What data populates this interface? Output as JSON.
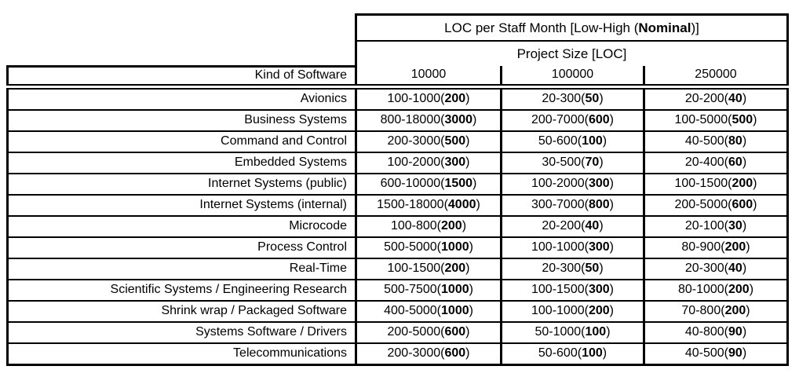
{
  "page": {
    "background_color": "#ffffff",
    "border_color": "#000000",
    "text_color": "#000000"
  },
  "header": {
    "title_prefix": "LOC per Staff Month [Low-High (",
    "title_bold": "Nominal",
    "title_suffix": ")]",
    "subtitle": "Project Size [LOC]",
    "row_header": "Kind of Software",
    "size_columns": [
      "10000",
      "100000",
      "250000"
    ]
  },
  "table": {
    "rows": [
      {
        "label": "Avionics",
        "cells": [
          {
            "low": "100",
            "high": "1000",
            "nominal": "200"
          },
          {
            "low": "20",
            "high": "300",
            "nominal": "50"
          },
          {
            "low": "20",
            "high": "200",
            "nominal": "40"
          }
        ]
      },
      {
        "label": "Business Systems",
        "cells": [
          {
            "low": "800",
            "high": "18000",
            "nominal": "3000"
          },
          {
            "low": "200",
            "high": "7000",
            "nominal": "600"
          },
          {
            "low": "100",
            "high": "5000",
            "nominal": "500"
          }
        ]
      },
      {
        "label": "Command and Control",
        "cells": [
          {
            "low": "200",
            "high": "3000",
            "nominal": "500"
          },
          {
            "low": "50",
            "high": "600",
            "nominal": "100"
          },
          {
            "low": "40",
            "high": "500",
            "nominal": "80"
          }
        ]
      },
      {
        "label": "Embedded Systems",
        "cells": [
          {
            "low": "100",
            "high": "2000",
            "nominal": "300"
          },
          {
            "low": "30",
            "high": "500",
            "nominal": "70"
          },
          {
            "low": "20",
            "high": "400",
            "nominal": "60"
          }
        ]
      },
      {
        "label": "Internet Systems (public)",
        "cells": [
          {
            "low": "600",
            "high": "10000",
            "nominal": "1500"
          },
          {
            "low": "100",
            "high": "2000",
            "nominal": "300"
          },
          {
            "low": "100",
            "high": "1500",
            "nominal": "200"
          }
        ]
      },
      {
        "label": "Internet Systems (internal)",
        "cells": [
          {
            "low": "1500",
            "high": "18000",
            "nominal": "4000"
          },
          {
            "low": "300",
            "high": "7000",
            "nominal": "800"
          },
          {
            "low": "200",
            "high": "5000",
            "nominal": "600"
          }
        ]
      },
      {
        "label": "Microcode",
        "cells": [
          {
            "low": "100",
            "high": "800",
            "nominal": "200"
          },
          {
            "low": "20",
            "high": "200",
            "nominal": "40"
          },
          {
            "low": "20",
            "high": "100",
            "nominal": "30"
          }
        ]
      },
      {
        "label": "Process Control",
        "cells": [
          {
            "low": "500",
            "high": "5000",
            "nominal": "1000"
          },
          {
            "low": "100",
            "high": "1000",
            "nominal": "300"
          },
          {
            "low": "80",
            "high": "900",
            "nominal": "200"
          }
        ]
      },
      {
        "label": "Real-Time",
        "cells": [
          {
            "low": "100",
            "high": "1500",
            "nominal": "200"
          },
          {
            "low": "20",
            "high": "300",
            "nominal": "50"
          },
          {
            "low": "20",
            "high": "300",
            "nominal": "40"
          }
        ]
      },
      {
        "label": "Scientific Systems / Engineering Research",
        "cells": [
          {
            "low": "500",
            "high": "7500",
            "nominal": "1000"
          },
          {
            "low": "100",
            "high": "1500",
            "nominal": "300"
          },
          {
            "low": "80",
            "high": "1000",
            "nominal": "200"
          }
        ]
      },
      {
        "label": "Shrink wrap / Packaged Software",
        "cells": [
          {
            "low": "400",
            "high": "5000",
            "nominal": "1000"
          },
          {
            "low": "100",
            "high": "1000",
            "nominal": "200"
          },
          {
            "low": "70",
            "high": "800",
            "nominal": "200"
          }
        ]
      },
      {
        "label": "Systems Software / Drivers",
        "cells": [
          {
            "low": "200",
            "high": "5000",
            "nominal": "600"
          },
          {
            "low": "50",
            "high": "1000",
            "nominal": "100"
          },
          {
            "low": "40",
            "high": "800",
            "nominal": "90"
          }
        ]
      },
      {
        "label": "Telecommunications",
        "cells": [
          {
            "low": "200",
            "high": "3000",
            "nominal": "600"
          },
          {
            "low": "50",
            "high": "600",
            "nominal": "100"
          },
          {
            "low": "40",
            "high": "500",
            "nominal": "90"
          }
        ]
      }
    ]
  }
}
